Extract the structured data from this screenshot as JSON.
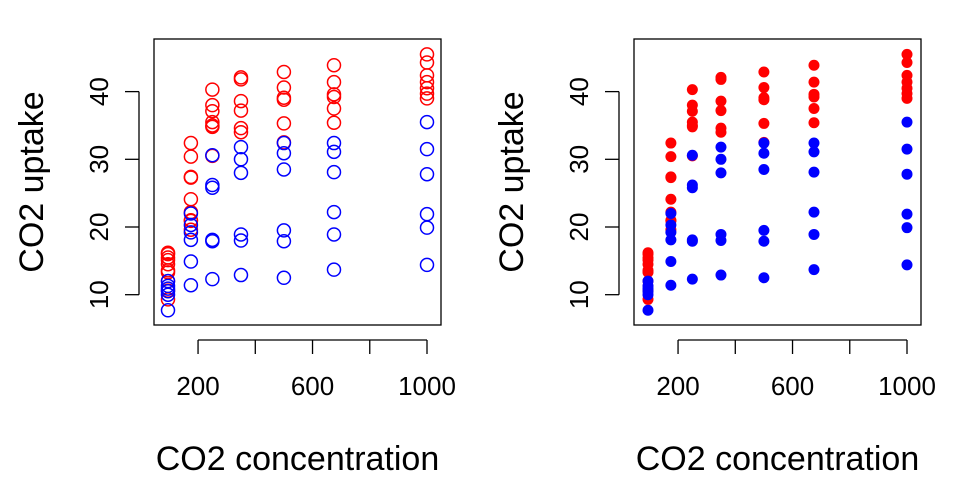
{
  "chart_data": [
    {
      "type": "scatter",
      "marker": "open-circle",
      "xlabel": "CO2 concentration",
      "ylabel": "CO2 uptake",
      "xlim": [
        95,
        1000
      ],
      "ylim": [
        7,
        46
      ],
      "xticks": [
        200,
        600,
        1000
      ],
      "xticks_minor": [
        400,
        800
      ],
      "yticks": [
        10,
        20,
        30,
        40
      ],
      "grid": false,
      "series": [
        {
          "color": "#ff0000",
          "points": [
            [
              95,
              16.0
            ],
            [
              95,
              15.1
            ],
            [
              95,
              13.6
            ],
            [
              95,
              15.5
            ],
            [
              95,
              12.0
            ],
            [
              95,
              10.6
            ],
            [
              95,
              9.3
            ],
            [
              95,
              13.3
            ],
            [
              95,
              16.2
            ],
            [
              95,
              14.5
            ],
            [
              175,
              30.4
            ],
            [
              175,
              32.4
            ],
            [
              175,
              27.4
            ],
            [
              175,
              27.3
            ],
            [
              175,
              24.1
            ],
            [
              175,
              22.2
            ],
            [
              175,
              19.6
            ],
            [
              175,
              20.9
            ],
            [
              175,
              21.0
            ],
            [
              250,
              34.8
            ],
            [
              250,
              37.1
            ],
            [
              250,
              40.3
            ],
            [
              250,
              38.0
            ],
            [
              250,
              35.0
            ],
            [
              250,
              30.5
            ],
            [
              250,
              35.5
            ],
            [
              350,
              37.2
            ],
            [
              350,
              41.8
            ],
            [
              350,
              42.1
            ],
            [
              350,
              38.6
            ],
            [
              350,
              34.0
            ],
            [
              350,
              34.6
            ],
            [
              500,
              35.3
            ],
            [
              500,
              40.6
            ],
            [
              500,
              42.9
            ],
            [
              500,
              39.1
            ],
            [
              500,
              38.8
            ],
            [
              500,
              32.5
            ],
            [
              675,
              39.2
            ],
            [
              675,
              41.4
            ],
            [
              675,
              43.9
            ],
            [
              675,
              39.6
            ],
            [
              675,
              37.5
            ],
            [
              675,
              35.4
            ],
            [
              1000,
              39.7
            ],
            [
              1000,
              44.3
            ],
            [
              1000,
              45.5
            ],
            [
              1000,
              41.4
            ],
            [
              1000,
              42.4
            ],
            [
              1000,
              40.5
            ],
            [
              1000,
              39.0
            ]
          ]
        },
        {
          "color": "#0000ff",
          "points": [
            [
              95,
              10.5
            ],
            [
              95,
              11.3
            ],
            [
              95,
              12.0
            ],
            [
              95,
              10.9
            ],
            [
              95,
              7.7
            ],
            [
              95,
              10.0
            ],
            [
              175,
              14.9
            ],
            [
              175,
              11.4
            ],
            [
              175,
              19.2
            ],
            [
              175,
              18.1
            ],
            [
              175,
              22.0
            ],
            [
              175,
              20.3
            ],
            [
              250,
              18.1
            ],
            [
              250,
              12.3
            ],
            [
              250,
              26.2
            ],
            [
              250,
              30.6
            ],
            [
              250,
              25.8
            ],
            [
              250,
              17.9
            ],
            [
              350,
              28.0
            ],
            [
              350,
              12.9
            ],
            [
              350,
              30.0
            ],
            [
              350,
              31.8
            ],
            [
              350,
              18.0
            ],
            [
              350,
              18.9
            ],
            [
              500,
              28.5
            ],
            [
              500,
              12.5
            ],
            [
              500,
              30.9
            ],
            [
              500,
              32.4
            ],
            [
              500,
              19.5
            ],
            [
              500,
              17.9
            ],
            [
              675,
              28.1
            ],
            [
              675,
              13.7
            ],
            [
              675,
              32.4
            ],
            [
              675,
              31.1
            ],
            [
              675,
              22.2
            ],
            [
              675,
              18.9
            ],
            [
              1000,
              27.8
            ],
            [
              1000,
              14.4
            ],
            [
              1000,
              35.5
            ],
            [
              1000,
              31.5
            ],
            [
              1000,
              21.9
            ],
            [
              1000,
              19.9
            ]
          ]
        }
      ]
    },
    {
      "type": "scatter",
      "marker": "filled-circle",
      "xlabel": "CO2 concentration",
      "ylabel": "CO2 uptake",
      "xlim": [
        95,
        1000
      ],
      "ylim": [
        7,
        46
      ],
      "xticks": [
        200,
        600,
        1000
      ],
      "xticks_minor": [
        400,
        800
      ],
      "yticks": [
        10,
        20,
        30,
        40
      ],
      "grid": false,
      "series": [
        {
          "color": "#ff0000",
          "points": [
            [
              95,
              16.0
            ],
            [
              95,
              15.1
            ],
            [
              95,
              13.6
            ],
            [
              95,
              15.5
            ],
            [
              95,
              12.0
            ],
            [
              95,
              10.6
            ],
            [
              95,
              9.3
            ],
            [
              95,
              13.3
            ],
            [
              95,
              16.2
            ],
            [
              95,
              14.5
            ],
            [
              175,
              30.4
            ],
            [
              175,
              32.4
            ],
            [
              175,
              27.4
            ],
            [
              175,
              27.3
            ],
            [
              175,
              24.1
            ],
            [
              175,
              22.2
            ],
            [
              175,
              19.6
            ],
            [
              175,
              20.9
            ],
            [
              175,
              21.0
            ],
            [
              250,
              34.8
            ],
            [
              250,
              37.1
            ],
            [
              250,
              40.3
            ],
            [
              250,
              38.0
            ],
            [
              250,
              35.0
            ],
            [
              250,
              30.5
            ],
            [
              250,
              35.5
            ],
            [
              350,
              37.2
            ],
            [
              350,
              41.8
            ],
            [
              350,
              42.1
            ],
            [
              350,
              38.6
            ],
            [
              350,
              34.0
            ],
            [
              350,
              34.6
            ],
            [
              500,
              35.3
            ],
            [
              500,
              40.6
            ],
            [
              500,
              42.9
            ],
            [
              500,
              39.1
            ],
            [
              500,
              38.8
            ],
            [
              500,
              32.5
            ],
            [
              675,
              39.2
            ],
            [
              675,
              41.4
            ],
            [
              675,
              43.9
            ],
            [
              675,
              39.6
            ],
            [
              675,
              37.5
            ],
            [
              675,
              35.4
            ],
            [
              1000,
              39.7
            ],
            [
              1000,
              44.3
            ],
            [
              1000,
              45.5
            ],
            [
              1000,
              41.4
            ],
            [
              1000,
              42.4
            ],
            [
              1000,
              40.5
            ],
            [
              1000,
              39.0
            ]
          ]
        },
        {
          "color": "#0000ff",
          "points": [
            [
              95,
              10.5
            ],
            [
              95,
              11.3
            ],
            [
              95,
              12.0
            ],
            [
              95,
              10.9
            ],
            [
              95,
              7.7
            ],
            [
              95,
              10.0
            ],
            [
              175,
              14.9
            ],
            [
              175,
              11.4
            ],
            [
              175,
              19.2
            ],
            [
              175,
              18.1
            ],
            [
              175,
              22.0
            ],
            [
              175,
              20.3
            ],
            [
              250,
              18.1
            ],
            [
              250,
              12.3
            ],
            [
              250,
              26.2
            ],
            [
              250,
              30.6
            ],
            [
              250,
              25.8
            ],
            [
              250,
              17.9
            ],
            [
              350,
              28.0
            ],
            [
              350,
              12.9
            ],
            [
              350,
              30.0
            ],
            [
              350,
              31.8
            ],
            [
              350,
              18.0
            ],
            [
              350,
              18.9
            ],
            [
              500,
              28.5
            ],
            [
              500,
              12.5
            ],
            [
              500,
              30.9
            ],
            [
              500,
              32.4
            ],
            [
              500,
              19.5
            ],
            [
              500,
              17.9
            ],
            [
              675,
              28.1
            ],
            [
              675,
              13.7
            ],
            [
              675,
              32.4
            ],
            [
              675,
              31.1
            ],
            [
              675,
              22.2
            ],
            [
              675,
              18.9
            ],
            [
              1000,
              27.8
            ],
            [
              1000,
              14.4
            ],
            [
              1000,
              35.5
            ],
            [
              1000,
              31.5
            ],
            [
              1000,
              21.9
            ],
            [
              1000,
              19.9
            ]
          ]
        }
      ]
    }
  ]
}
